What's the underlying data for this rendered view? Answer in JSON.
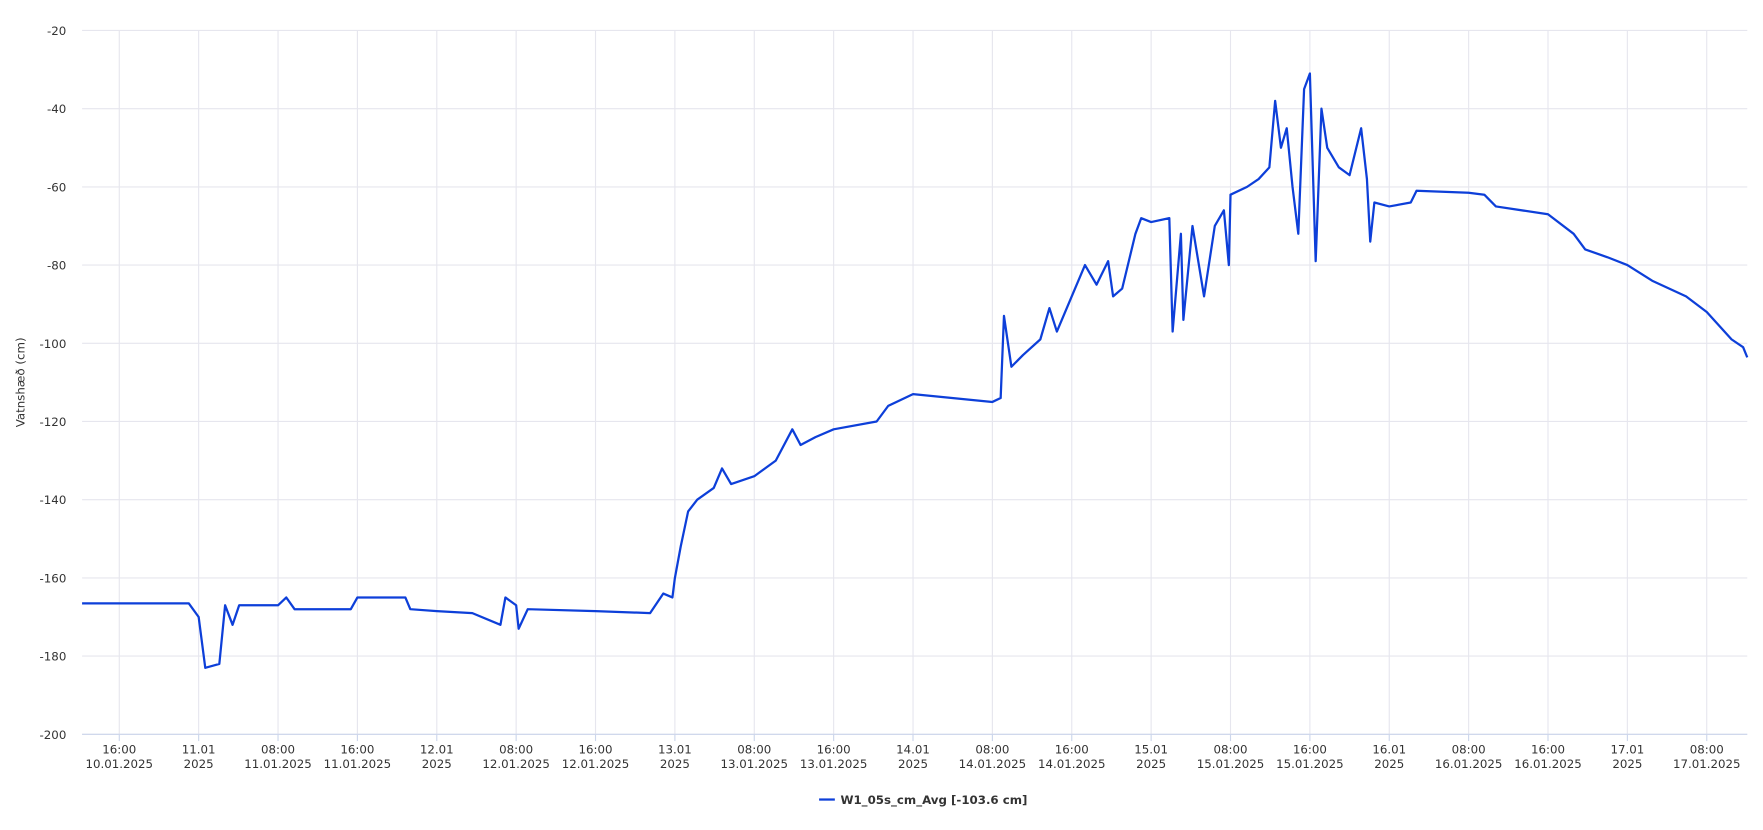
{
  "chart_data": {
    "type": "line",
    "y_label": "Vatnshæð (cm)",
    "x": [
      "10.01.2025 12:15",
      "10.01.2025 23:00",
      "11.01.2025 00:00",
      "11.01.2025 00:40",
      "11.01.2025 02:05",
      "11.01.2025 02:40",
      "11.01.2025 03:25",
      "11.01.2025 04:05",
      "11.01.2025 08:00",
      "11.01.2025 08:50",
      "11.01.2025 09:40",
      "11.01.2025 15:20",
      "11.01.2025 16:00",
      "11.01.2025 20:50",
      "11.01.2025 21:20",
      "12.01.2025 00:00",
      "12.01.2025 03:35",
      "12.01.2025 06:25",
      "12.01.2025 06:55",
      "12.01.2025 08:00",
      "12.01.2025 08:15",
      "12.01.2025 09:10",
      "12.01.2025 16:00",
      "12.01.2025 21:30",
      "12.01.2025 22:50",
      "12.01.2025 23:45",
      "13.01.2025 00:00",
      "13.01.2025 00:35",
      "13.01.2025 01:20",
      "13.01.2025 02:15",
      "13.01.2025 03:55",
      "13.01.2025 04:45",
      "13.01.2025 05:40",
      "13.01.2025 08:00",
      "13.01.2025 10:10",
      "13.01.2025 11:50",
      "13.01.2025 12:40",
      "13.01.2025 14:10",
      "13.01.2025 16:00",
      "13.01.2025 20:20",
      "13.01.2025 21:30",
      "14.01.2025 00:00",
      "14.01.2025 08:00",
      "14.01.2025 08:50",
      "14.01.2025 09:10",
      "14.01.2025 09:55",
      "14.01.2025 11:05",
      "14.01.2025 12:50",
      "14.01.2025 13:45",
      "14.01.2025 14:30",
      "14.01.2025 16:00",
      "14.01.2025 17:20",
      "14.01.2025 18:30",
      "14.01.2025 19:40",
      "14.01.2025 20:10",
      "14.01.2025 21:05",
      "14.01.2025 22:25",
      "14.01.2025 23:00",
      "15.01.2025 00:00",
      "15.01.2025 01:50",
      "15.01.2025 02:10",
      "15.01.2025 03:00",
      "15.01.2025 03:15",
      "15.01.2025 04:10",
      "15.01.2025 05:20",
      "15.01.2025 06:25",
      "15.01.2025 07:20",
      "15.01.2025 07:50",
      "15.01.2025 08:00",
      "15.01.2025 09:40",
      "15.01.2025 10:50",
      "15.01.2025 11:55",
      "15.01.2025 12:30",
      "15.01.2025 13:05",
      "15.01.2025 13:40",
      "15.01.2025 14:15",
      "15.01.2025 14:50",
      "15.01.2025 15:25",
      "15.01.2025 16:00",
      "15.01.2025 16:35",
      "15.01.2025 17:10",
      "15.01.2025 17:45",
      "15.01.2025 18:55",
      "15.01.2025 20:00",
      "15.01.2025 21:10",
      "15.01.2025 21:45",
      "15.01.2025 22:05",
      "15.01.2025 22:30",
      "16.01.2025 00:00",
      "16.01.2025 02:10",
      "16.01.2025 02:45",
      "16.01.2025 08:00",
      "16.01.2025 09:35",
      "16.01.2025 10:45",
      "16.01.2025 16:00",
      "16.01.2025 18:35",
      "16.01.2025 19:45",
      "16.01.2025 22:00",
      "17.01.2025 00:00",
      "17.01.2025 02:30",
      "17.01.2025 05:55",
      "17.01.2025 08:00",
      "17.01.2025 10:30",
      "17.01.2025 11:40",
      "17.01.2025 12:05"
    ],
    "series": [
      {
        "name": "W1_05s_cm_Avg [-103.6 cm]",
        "color": "#0d3fd9",
        "values": [
          -166.5,
          -166.5,
          -170,
          -183,
          -182,
          -167,
          -172,
          -167,
          -167,
          -165,
          -168,
          -168,
          -165,
          -165,
          -168,
          -168.5,
          -169,
          -172,
          -165,
          -167,
          -173,
          -168,
          -168.5,
          -169,
          -164,
          -165,
          -160,
          -152,
          -143,
          -140,
          -137,
          -132,
          -136,
          -134,
          -130,
          -122,
          -126,
          -124,
          -122,
          -120,
          -116,
          -113,
          -115,
          -114,
          -93,
          -106,
          -103,
          -99,
          -91,
          -97,
          -88,
          -80,
          -85,
          -79,
          -88,
          -86,
          -72,
          -68,
          -69,
          -68,
          -97,
          -72,
          -94,
          -70,
          -88,
          -70,
          -66,
          -80,
          -62,
          -60,
          -58,
          -55,
          -38,
          -50,
          -45,
          -60,
          -72,
          -35,
          -31,
          -79,
          -40,
          -50,
          -55,
          -57,
          -45,
          -58,
          -74,
          -64,
          -65,
          -64,
          -61,
          -61.5,
          -62,
          -65,
          -67,
          -72,
          -76,
          -78,
          -80,
          -84,
          -88,
          -92,
          -99,
          -101,
          -103.6
        ]
      }
    ],
    "xlim": [
      "10.01.2025 12:15",
      "17.01.2025 12:05"
    ],
    "ylim": [
      -200,
      -20
    ],
    "yticks": [
      -200,
      -180,
      -160,
      -140,
      -120,
      -100,
      -80,
      -60,
      -40,
      -20
    ],
    "xticks": [
      {
        "value": "10.01.2025 16:00",
        "label": [
          "16:00",
          "10.01.2025"
        ]
      },
      {
        "value": "11.01.2025 00:00",
        "label": [
          "11.01",
          "2025"
        ]
      },
      {
        "value": "11.01.2025 08:00",
        "label": [
          "08:00",
          "11.01.2025"
        ]
      },
      {
        "value": "11.01.2025 16:00",
        "label": [
          "16:00",
          "11.01.2025"
        ]
      },
      {
        "value": "12.01.2025 00:00",
        "label": [
          "12.01",
          "2025"
        ]
      },
      {
        "value": "12.01.2025 08:00",
        "label": [
          "08:00",
          "12.01.2025"
        ]
      },
      {
        "value": "12.01.2025 16:00",
        "label": [
          "16:00",
          "12.01.2025"
        ]
      },
      {
        "value": "13.01.2025 00:00",
        "label": [
          "13.01",
          "2025"
        ]
      },
      {
        "value": "13.01.2025 08:00",
        "label": [
          "08:00",
          "13.01.2025"
        ]
      },
      {
        "value": "13.01.2025 16:00",
        "label": [
          "16:00",
          "13.01.2025"
        ]
      },
      {
        "value": "14.01.2025 00:00",
        "label": [
          "14.01",
          "2025"
        ]
      },
      {
        "value": "14.01.2025 08:00",
        "label": [
          "08:00",
          "14.01.2025"
        ]
      },
      {
        "value": "14.01.2025 16:00",
        "label": [
          "16:00",
          "14.01.2025"
        ]
      },
      {
        "value": "15.01.2025 00:00",
        "label": [
          "15.01",
          "2025"
        ]
      },
      {
        "value": "15.01.2025 08:00",
        "label": [
          "08:00",
          "15.01.2025"
        ]
      },
      {
        "value": "15.01.2025 16:00",
        "label": [
          "16:00",
          "15.01.2025"
        ]
      },
      {
        "value": "16.01.2025 00:00",
        "label": [
          "16.01",
          "2025"
        ]
      },
      {
        "value": "16.01.2025 08:00",
        "label": [
          "08:00",
          "16.01.2025"
        ]
      },
      {
        "value": "16.01.2025 16:00",
        "label": [
          "16:00",
          "16.01.2025"
        ]
      },
      {
        "value": "17.01.2025 00:00",
        "label": [
          "17.01",
          "2025"
        ]
      },
      {
        "value": "17.01.2025 08:00",
        "label": [
          "08:00",
          "17.01.2025"
        ]
      }
    ],
    "grid": true,
    "legend": "bottom"
  }
}
